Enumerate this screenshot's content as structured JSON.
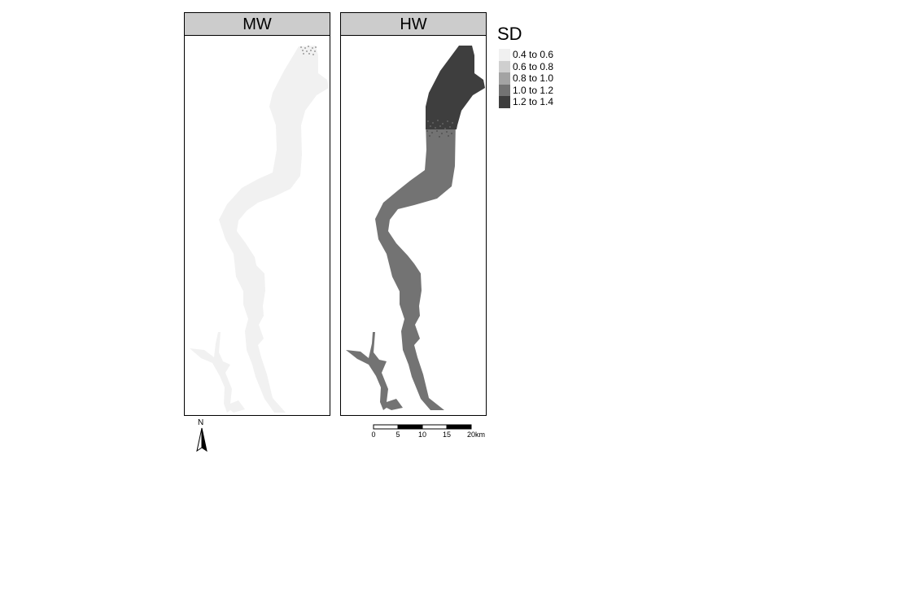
{
  "panels": [
    {
      "title": "MW",
      "fill": "#f2f2f2"
    },
    {
      "title": "HW",
      "fill_upper": "#3e3e3e",
      "fill_lower": "#737373"
    }
  ],
  "legend": {
    "title": "SD",
    "items": [
      {
        "label": "0.4 to 0.6",
        "color": "#f0f0f0"
      },
      {
        "label": "0.6 to 0.8",
        "color": "#cfcfcf"
      },
      {
        "label": "0.8 to 1.0",
        "color": "#a3a3a3"
      },
      {
        "label": "1.0 to 1.2",
        "color": "#737373"
      },
      {
        "label": "1.2 to 1.4",
        "color": "#3e3e3e"
      }
    ]
  },
  "north_arrow": {
    "label": "N"
  },
  "scale_bar": {
    "ticks": [
      "0",
      "5",
      "10",
      "15",
      "20km"
    ]
  }
}
